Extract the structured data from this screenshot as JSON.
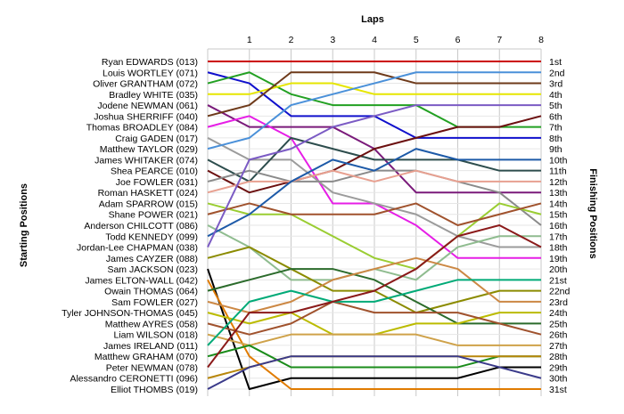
{
  "chart_data": {
    "type": "line",
    "title": "Laps",
    "ylabel_left": "Starting Positions",
    "ylabel_right": "Finishing Positions",
    "laps": [
      1,
      2,
      3,
      4,
      5,
      6,
      7,
      8
    ],
    "drivers": [
      "Ryan EDWARDS (013)",
      "Louis WORTLEY (071)",
      "Oliver GRANTHAM (072)",
      "Bradley WHITE (035)",
      "Jodene NEWMAN (061)",
      "Joshua SHERRIFF (040)",
      "Thomas BROADLEY (084)",
      "Craig GADEN (017)",
      "Matthew TAYLOR (029)",
      "James WHITAKER (074)",
      "Shea PEARCE (010)",
      "Joe FOWLER (031)",
      "Roman HASKETT (024)",
      "Adam SPARROW (015)",
      "Shane POWER (021)",
      "Anderson CHILCOTT (086)",
      "Todd KENNEDY (099)",
      "Jordan-Lee CHAPMAN (038)",
      "James CAYZER (088)",
      "Sam JACKSON (023)",
      "James ELTON-WALL (042)",
      "Owain THOMAS (064)",
      "Sam FOWLER (027)",
      "Tyler JOHNSON-THOMAS (045)",
      "Matthew AYRES (058)",
      "Liam WILSON (018)",
      "James IRELAND (011)",
      "Matthew GRAHAM (070)",
      "Peter NEWMAN (078)",
      "Alessandro CERONETTI (096)",
      "Elliot THOMBS (019)"
    ],
    "positions": [
      "1st",
      "2nd",
      "3rd",
      "4th",
      "5th",
      "6th",
      "7th",
      "8th",
      "9th",
      "10th",
      "11th",
      "12th",
      "13th",
      "14th",
      "15th",
      "16th",
      "17th",
      "18th",
      "19th",
      "20th",
      "21st",
      "22nd",
      "23rd",
      "24th",
      "25th",
      "26th",
      "27th",
      "28th",
      "29th",
      "30th",
      "31st"
    ],
    "series": [
      {
        "color": "#cc0000",
        "values": [
          1,
          1,
          1,
          1,
          1,
          1,
          1,
          1,
          1
        ]
      },
      {
        "color": "#1010cc",
        "values": [
          2,
          3,
          6,
          6,
          6,
          8,
          8,
          8,
          8
        ]
      },
      {
        "color": "#22a022",
        "values": [
          3,
          2,
          4,
          5,
          5,
          5,
          7,
          7,
          7
        ]
      },
      {
        "color": "#e6e600",
        "values": [
          4,
          4,
          3,
          3,
          4,
          4,
          4,
          4,
          4
        ]
      },
      {
        "color": "#7a1a7a",
        "values": [
          5,
          7,
          7,
          7,
          9,
          13,
          13,
          13,
          13
        ]
      },
      {
        "color": "#6e3a1a",
        "values": [
          6,
          5,
          2,
          2,
          2,
          3,
          3,
          3,
          3
        ]
      },
      {
        "color": "#e61ee6",
        "values": [
          7,
          6,
          8,
          14,
          14,
          16,
          19,
          19,
          19
        ]
      },
      {
        "color": "#9b9b9b",
        "values": [
          8,
          10,
          10,
          13,
          14,
          15,
          17,
          18,
          18
        ]
      },
      {
        "color": "#4a90d9",
        "values": [
          9,
          8,
          5,
          4,
          3,
          2,
          2,
          2,
          2
        ]
      },
      {
        "color": "#2d4d4d",
        "values": [
          10,
          12,
          8,
          9,
          10,
          10,
          10,
          11,
          11
        ]
      },
      {
        "color": "#6b0f0f",
        "values": [
          11,
          13,
          12,
          11,
          9,
          8,
          7,
          7,
          6
        ]
      },
      {
        "color": "#8a8a8a",
        "values": [
          12,
          11,
          12,
          12,
          11,
          11,
          12,
          13,
          16
        ]
      },
      {
        "color": "#e8a090",
        "values": [
          13,
          12,
          12,
          11,
          12,
          11,
          12,
          12,
          12
        ]
      },
      {
        "color": "#9acd32",
        "values": [
          14,
          15,
          15,
          17,
          19,
          20,
          17,
          14,
          15
        ]
      },
      {
        "color": "#a0522d",
        "values": [
          15,
          14,
          15,
          15,
          15,
          14,
          16,
          15,
          14
        ]
      },
      {
        "color": "#8fbc8f",
        "values": [
          16,
          18,
          21,
          21,
          20,
          21,
          18,
          17,
          17
        ]
      },
      {
        "color": "#1d5aa8",
        "values": [
          17,
          15,
          12,
          10,
          11,
          9,
          10,
          10,
          10
        ]
      },
      {
        "color": "#7b5bc4",
        "values": [
          18,
          10,
          9,
          7,
          6,
          5,
          5,
          5,
          5
        ]
      },
      {
        "color": "#8b8b00",
        "values": [
          19,
          18,
          20,
          22,
          22,
          24,
          23,
          22,
          22
        ]
      },
      {
        "color": "#000000",
        "values": [
          20,
          31,
          30,
          30,
          30,
          30,
          30,
          29,
          29
        ]
      },
      {
        "color": "#e07b00",
        "values": [
          21,
          28,
          31,
          31,
          31,
          31,
          31,
          31,
          31
        ]
      },
      {
        "color": "#2b6b2b",
        "values": [
          22,
          21,
          20,
          20,
          21,
          23,
          25,
          25,
          25
        ]
      },
      {
        "color": "#cc8844",
        "values": [
          23,
          24,
          23,
          21,
          20,
          19,
          20,
          23,
          23
        ]
      },
      {
        "color": "#bbbb00",
        "values": [
          24,
          25,
          24,
          26,
          26,
          25,
          25,
          24,
          24
        ]
      },
      {
        "color": "#a0522d",
        "values": [
          25,
          26,
          25,
          23,
          24,
          24,
          24,
          25,
          26
        ]
      },
      {
        "color": "#cfa24a",
        "values": [
          26,
          27,
          26,
          26,
          26,
          26,
          27,
          27,
          27
        ]
      },
      {
        "color": "#00aa77",
        "values": [
          27,
          23,
          22,
          23,
          23,
          22,
          21,
          21,
          21
        ]
      },
      {
        "color": "#1a8c1a",
        "values": [
          28,
          27,
          29,
          29,
          29,
          29,
          29,
          28,
          28
        ]
      },
      {
        "color": "#8b1a1a",
        "values": [
          29,
          24,
          24,
          23,
          22,
          20,
          17,
          16,
          18
        ]
      },
      {
        "color": "#b8860b",
        "values": [
          30,
          29,
          28,
          28,
          28,
          28,
          28,
          28,
          28
        ]
      },
      {
        "color": "#3a3a8a",
        "values": [
          31,
          29,
          28,
          28,
          28,
          28,
          28,
          29,
          30
        ]
      }
    ],
    "grid": true
  }
}
